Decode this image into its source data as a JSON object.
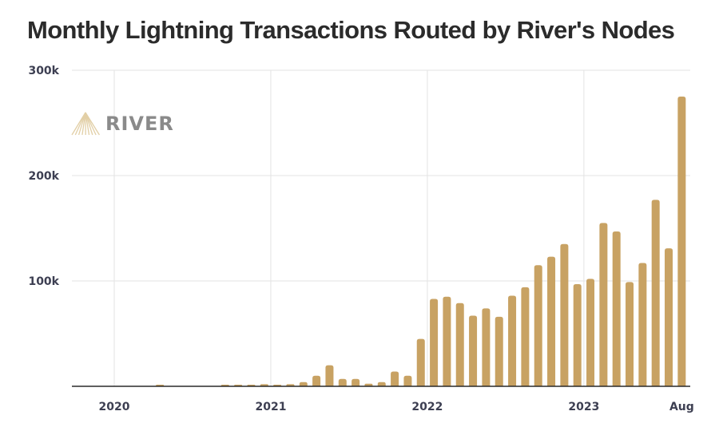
{
  "chart_data": {
    "type": "bar",
    "title": "Monthly Lightning Transactions Routed by River's Nodes",
    "xlabel": "",
    "ylabel": "",
    "ylim": [
      0,
      300000
    ],
    "yticks": [
      {
        "value": 100000,
        "label": "100k"
      },
      {
        "value": 200000,
        "label": "200k"
      },
      {
        "value": 300000,
        "label": "300k"
      }
    ],
    "xticks": [
      {
        "month_index": 0,
        "label": "2020",
        "gridline": true
      },
      {
        "month_index": 12,
        "label": "2021",
        "gridline": true
      },
      {
        "month_index": 24,
        "label": "2022",
        "gridline": true
      },
      {
        "month_index": 36,
        "label": "2023",
        "gridline": true
      },
      {
        "month_index": 43,
        "label": "Aug",
        "gridline": false
      }
    ],
    "grid": true,
    "bar_color": "#c8a263",
    "categories": [
      "2020-01",
      "2020-02",
      "2020-03",
      "2020-04",
      "2020-05",
      "2020-06",
      "2020-07",
      "2020-08",
      "2020-09",
      "2020-10",
      "2020-11",
      "2020-12",
      "2021-01",
      "2021-02",
      "2021-03",
      "2021-04",
      "2021-05",
      "2021-06",
      "2021-07",
      "2021-08",
      "2021-09",
      "2021-10",
      "2021-11",
      "2021-12",
      "2022-01",
      "2022-02",
      "2022-03",
      "2022-04",
      "2022-05",
      "2022-06",
      "2022-07",
      "2022-08",
      "2022-09",
      "2022-10",
      "2022-11",
      "2022-12",
      "2023-01",
      "2023-02",
      "2023-03",
      "2023-04",
      "2023-05",
      "2023-06",
      "2023-07",
      "2023-08"
    ],
    "values": [
      0,
      0,
      0,
      1500,
      0,
      0,
      0,
      0,
      1000,
      1000,
      1000,
      2000,
      1000,
      2000,
      4000,
      10000,
      20000,
      7000,
      7000,
      2500,
      4000,
      14000,
      10000,
      45000,
      83000,
      85000,
      79000,
      67000,
      74000,
      66000,
      86000,
      94000,
      115000,
      123000,
      135000,
      97000,
      102000,
      155000,
      147000,
      99000,
      117000,
      177000,
      131000,
      275000
    ]
  },
  "branding": {
    "logo_text": "RIVER",
    "logo_icon": "river-mountain-icon",
    "logo_color": "#e2cfa6",
    "text_color": "#8a8a8a"
  }
}
